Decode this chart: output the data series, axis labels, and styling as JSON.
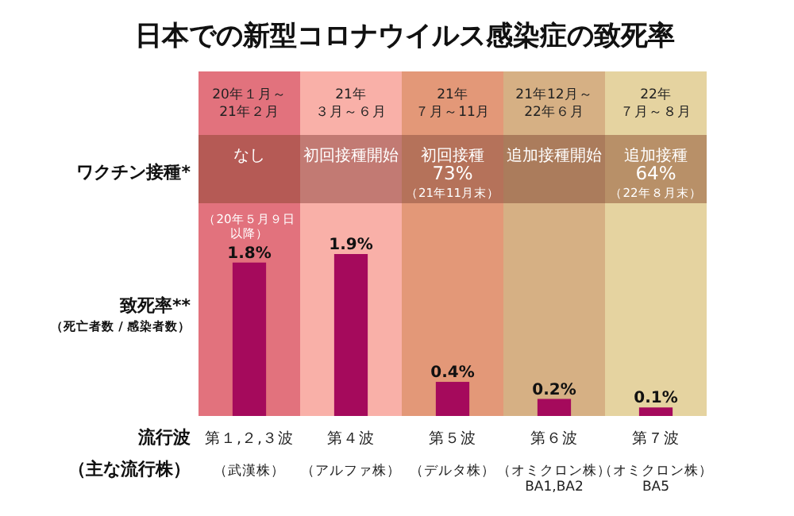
{
  "chart_data": {
    "type": "bar",
    "title": "日本での新型コロナウイルス感染症の致死率",
    "categories": [
      "第１,２,３波",
      "第４波",
      "第５波",
      "第６波",
      "第７波"
    ],
    "values": [
      1.8,
      1.9,
      0.4,
      0.2,
      0.1
    ],
    "color": "#a50a5c",
    "value_labels": [
      "1.8%",
      "1.9%",
      "0.4%",
      "0.2%",
      "0.1%"
    ],
    "ylabel": "致死率**",
    "xlabel": "流行波",
    "annotations": [
      "20年１月～",
      "21年",
      "21年",
      "21年12月～",
      "22年",
      "21年２月",
      "３月～６月",
      "７月～11月",
      "22年６月",
      "７月～８月",
      "なし",
      "初回接種開始",
      "初回接種",
      "追加接種開始",
      "追加接種",
      "73%",
      "（21年11月末）",
      "64%",
      "（22年８月末）",
      "ワクチン接種*",
      "（死亡者数 / 感染者数）",
      "（主な流行株）",
      "（武漢株）",
      "（アルファ株）",
      "（デルタ株）",
      "（オミクロン株）",
      "（オミクロン株）",
      "BA1,BA2",
      "BA5",
      {
        "text": "（20年５月９日以降）",
        "x": "第１,２,３波",
        "y": 1.8
      }
    ]
  }
}
